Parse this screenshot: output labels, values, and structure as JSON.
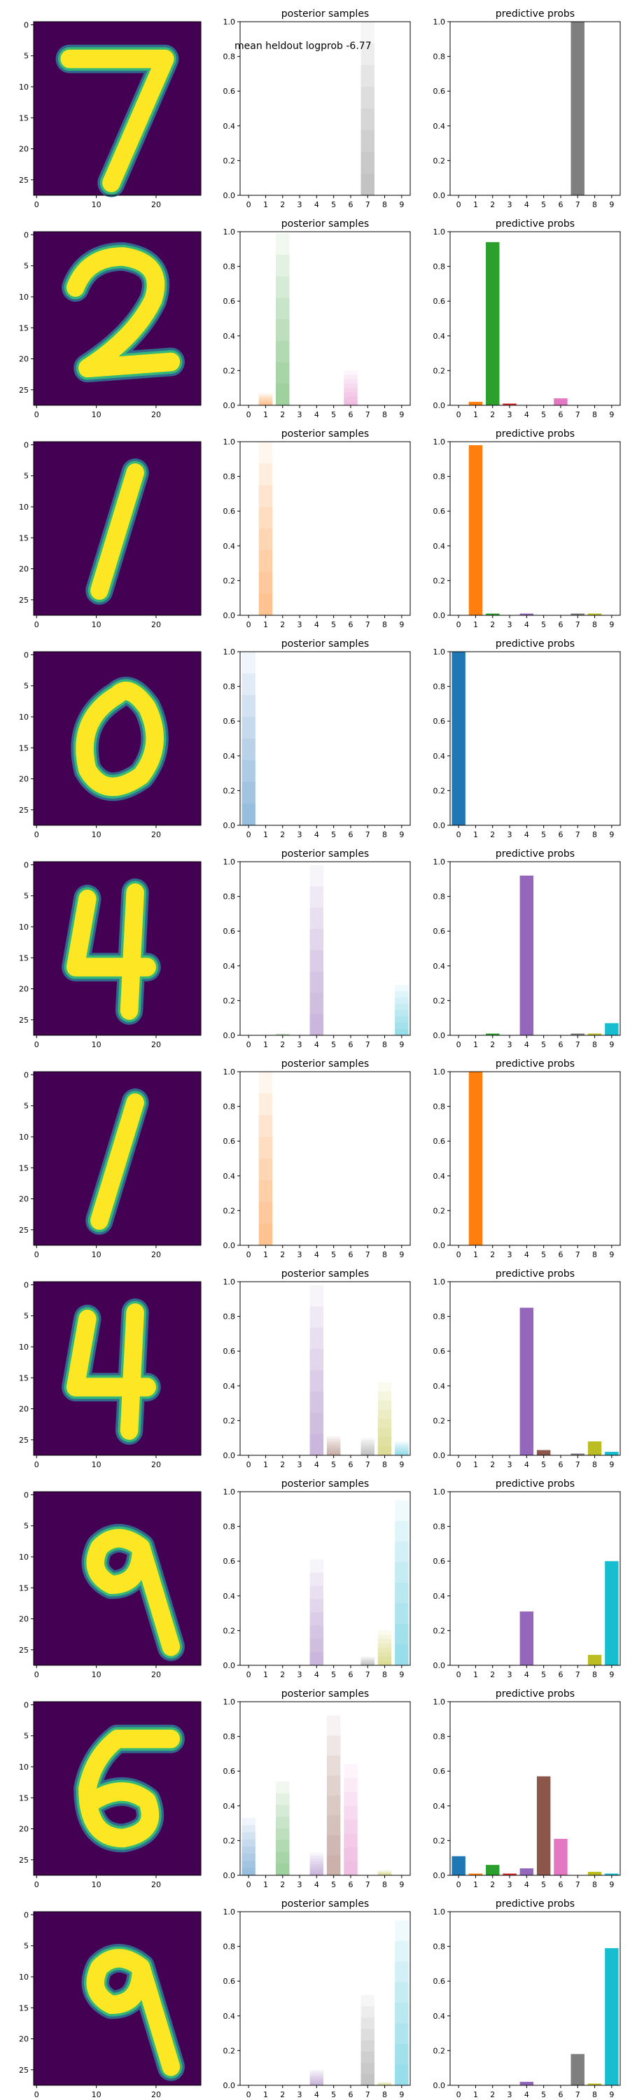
{
  "annotation": "mean heldout logprob -6.77",
  "colors": [
    "#1f77b4",
    "#ff7f0e",
    "#2ca02c",
    "#d62728",
    "#9467bd",
    "#8c564b",
    "#e377c2",
    "#7f7f7f",
    "#bcbd22",
    "#17becf"
  ],
  "chart_data": [
    {
      "type": "figure-row",
      "image": {
        "type": "heatmap",
        "digit_shown": "7",
        "colormap": "viridis",
        "xticks": [
          0,
          10,
          20
        ],
        "yticks": [
          0,
          5,
          10,
          15,
          20,
          25
        ]
      },
      "posterior": {
        "type": "bar",
        "title": "posterior samples",
        "categories": [
          "0",
          "1",
          "2",
          "3",
          "4",
          "5",
          "6",
          "7",
          "8",
          "9"
        ],
        "stack_values": [
          1.0,
          0,
          0,
          0,
          0,
          0,
          0,
          0,
          0,
          0
        ],
        "ylim": [
          0,
          1
        ],
        "yticks": [
          "0.0",
          "0.2",
          "0.4",
          "0.6",
          "0.8",
          "1.0"
        ],
        "categories_dominant": 7,
        "samples": [
          [
            7,
            1.0
          ]
        ]
      },
      "predictive": {
        "type": "bar",
        "title": "predictive probs",
        "categories": [
          "0",
          "1",
          "2",
          "3",
          "4",
          "5",
          "6",
          "7",
          "8",
          "9"
        ],
        "values": [
          0,
          0,
          0,
          0,
          0,
          0,
          0,
          1.0,
          0,
          0
        ],
        "ylim": [
          0,
          1
        ],
        "yticks": [
          "0.0",
          "0.2",
          "0.4",
          "0.6",
          "0.8",
          "1.0"
        ]
      }
    },
    {
      "type": "figure-row",
      "image": {
        "type": "heatmap",
        "digit_shown": "2",
        "colormap": "viridis",
        "xticks": [
          0,
          10,
          20
        ],
        "yticks": [
          0,
          5,
          10,
          15,
          20,
          25
        ]
      },
      "posterior": {
        "type": "bar",
        "title": "posterior samples",
        "categories": [
          "0",
          "1",
          "2",
          "3",
          "4",
          "5",
          "6",
          "7",
          "8",
          "9"
        ],
        "ylim": [
          0,
          1
        ],
        "yticks": [
          "0.0",
          "0.2",
          "0.4",
          "0.6",
          "0.8",
          "1.0"
        ],
        "samples": [
          [
            2,
            0.99
          ],
          [
            1,
            0.07
          ],
          [
            6,
            0.2
          ]
        ]
      },
      "predictive": {
        "type": "bar",
        "title": "predictive probs",
        "categories": [
          "0",
          "1",
          "2",
          "3",
          "4",
          "5",
          "6",
          "7",
          "8",
          "9"
        ],
        "values": [
          0,
          0.02,
          0.94,
          0.01,
          0,
          0,
          0.04,
          0,
          0,
          0
        ],
        "ylim": [
          0,
          1
        ],
        "yticks": [
          "0.0",
          "0.2",
          "0.4",
          "0.6",
          "0.8",
          "1.0"
        ]
      }
    },
    {
      "type": "figure-row",
      "image": {
        "type": "heatmap",
        "digit_shown": "1",
        "colormap": "viridis",
        "xticks": [
          0,
          10,
          20
        ],
        "yticks": [
          0,
          5,
          10,
          15,
          20,
          25
        ]
      },
      "posterior": {
        "type": "bar",
        "title": "posterior samples",
        "categories": [
          "0",
          "1",
          "2",
          "3",
          "4",
          "5",
          "6",
          "7",
          "8",
          "9"
        ],
        "ylim": [
          0,
          1
        ],
        "yticks": [
          "0.0",
          "0.2",
          "0.4",
          "0.6",
          "0.8",
          "1.0"
        ],
        "samples": [
          [
            1,
            1.0
          ]
        ]
      },
      "predictive": {
        "type": "bar",
        "title": "predictive probs",
        "categories": [
          "0",
          "1",
          "2",
          "3",
          "4",
          "5",
          "6",
          "7",
          "8",
          "9"
        ],
        "values": [
          0,
          0.98,
          0.01,
          0,
          0.01,
          0,
          0,
          0.01,
          0.01,
          0
        ],
        "ylim": [
          0,
          1
        ],
        "yticks": [
          "0.0",
          "0.2",
          "0.4",
          "0.6",
          "0.8",
          "1.0"
        ]
      }
    },
    {
      "type": "figure-row",
      "image": {
        "type": "heatmap",
        "digit_shown": "0",
        "colormap": "viridis",
        "xticks": [
          0,
          10,
          20
        ],
        "yticks": [
          0,
          5,
          10,
          15,
          20,
          25
        ]
      },
      "posterior": {
        "type": "bar",
        "title": "posterior samples",
        "categories": [
          "0",
          "1",
          "2",
          "3",
          "4",
          "5",
          "6",
          "7",
          "8",
          "9"
        ],
        "ylim": [
          0,
          1
        ],
        "yticks": [
          "0.0",
          "0.2",
          "0.4",
          "0.6",
          "0.8",
          "1.0"
        ],
        "samples": [
          [
            0,
            1.0
          ]
        ]
      },
      "predictive": {
        "type": "bar",
        "title": "predictive probs",
        "categories": [
          "0",
          "1",
          "2",
          "3",
          "4",
          "5",
          "6",
          "7",
          "8",
          "9"
        ],
        "values": [
          1.0,
          0,
          0,
          0,
          0,
          0,
          0,
          0,
          0,
          0
        ],
        "ylim": [
          0,
          1
        ],
        "yticks": [
          "0.0",
          "0.2",
          "0.4",
          "0.6",
          "0.8",
          "1.0"
        ]
      }
    },
    {
      "type": "figure-row",
      "image": {
        "type": "heatmap",
        "digit_shown": "4",
        "colormap": "viridis",
        "xticks": [
          0,
          10,
          20
        ],
        "yticks": [
          0,
          5,
          10,
          15,
          20,
          25
        ]
      },
      "posterior": {
        "type": "bar",
        "title": "posterior samples",
        "categories": [
          "0",
          "1",
          "2",
          "3",
          "4",
          "5",
          "6",
          "7",
          "8",
          "9"
        ],
        "ylim": [
          0,
          1
        ],
        "yticks": [
          "0.0",
          "0.2",
          "0.4",
          "0.6",
          "0.8",
          "1.0"
        ],
        "samples": [
          [
            4,
            0.98
          ],
          [
            9,
            0.29
          ],
          [
            2,
            0.01
          ]
        ]
      },
      "predictive": {
        "type": "bar",
        "title": "predictive probs",
        "categories": [
          "0",
          "1",
          "2",
          "3",
          "4",
          "5",
          "6",
          "7",
          "8",
          "9"
        ],
        "values": [
          0,
          0,
          0.01,
          0,
          0.92,
          0,
          0,
          0.01,
          0.01,
          0.07
        ],
        "ylim": [
          0,
          1
        ],
        "yticks": [
          "0.0",
          "0.2",
          "0.4",
          "0.6",
          "0.8",
          "1.0"
        ]
      }
    },
    {
      "type": "figure-row",
      "image": {
        "type": "heatmap",
        "digit_shown": "1",
        "colormap": "viridis",
        "xticks": [
          0,
          10,
          20
        ],
        "yticks": [
          0,
          5,
          10,
          15,
          20,
          25
        ]
      },
      "posterior": {
        "type": "bar",
        "title": "posterior samples",
        "categories": [
          "0",
          "1",
          "2",
          "3",
          "4",
          "5",
          "6",
          "7",
          "8",
          "9"
        ],
        "ylim": [
          0,
          1
        ],
        "yticks": [
          "0.0",
          "0.2",
          "0.4",
          "0.6",
          "0.8",
          "1.0"
        ],
        "samples": [
          [
            1,
            1.0
          ]
        ]
      },
      "predictive": {
        "type": "bar",
        "title": "predictive probs",
        "categories": [
          "0",
          "1",
          "2",
          "3",
          "4",
          "5",
          "6",
          "7",
          "8",
          "9"
        ],
        "values": [
          0,
          1.0,
          0,
          0,
          0,
          0,
          0,
          0,
          0,
          0
        ],
        "ylim": [
          0,
          1
        ],
        "yticks": [
          "0.0",
          "0.2",
          "0.4",
          "0.6",
          "0.8",
          "1.0"
        ]
      }
    },
    {
      "type": "figure-row",
      "image": {
        "type": "heatmap",
        "digit_shown": "4",
        "colormap": "viridis",
        "xticks": [
          0,
          10,
          20
        ],
        "yticks": [
          0,
          5,
          10,
          15,
          20,
          25
        ]
      },
      "posterior": {
        "type": "bar",
        "title": "posterior samples",
        "categories": [
          "0",
          "1",
          "2",
          "3",
          "4",
          "5",
          "6",
          "7",
          "8",
          "9"
        ],
        "ylim": [
          0,
          1
        ],
        "yticks": [
          "0.0",
          "0.2",
          "0.4",
          "0.6",
          "0.8",
          "1.0"
        ],
        "samples": [
          [
            4,
            0.98
          ],
          [
            5,
            0.11
          ],
          [
            7,
            0.1
          ],
          [
            8,
            0.42
          ],
          [
            9,
            0.08
          ]
        ]
      },
      "predictive": {
        "type": "bar",
        "title": "predictive probs",
        "categories": [
          "0",
          "1",
          "2",
          "3",
          "4",
          "5",
          "6",
          "7",
          "8",
          "9"
        ],
        "values": [
          0,
          0,
          0,
          0,
          0.85,
          0.03,
          0,
          0.01,
          0.08,
          0.02
        ],
        "ylim": [
          0,
          1
        ],
        "yticks": [
          "0.0",
          "0.2",
          "0.4",
          "0.6",
          "0.8",
          "1.0"
        ]
      }
    },
    {
      "type": "figure-row",
      "image": {
        "type": "heatmap",
        "digit_shown": "9",
        "colormap": "viridis",
        "xticks": [
          0,
          10,
          20
        ],
        "yticks": [
          0,
          5,
          10,
          15,
          20,
          25
        ]
      },
      "posterior": {
        "type": "bar",
        "title": "posterior samples",
        "categories": [
          "0",
          "1",
          "2",
          "3",
          "4",
          "5",
          "6",
          "7",
          "8",
          "9"
        ],
        "ylim": [
          0,
          1
        ],
        "yticks": [
          "0.0",
          "0.2",
          "0.4",
          "0.6",
          "0.8",
          "1.0"
        ],
        "samples": [
          [
            4,
            0.61
          ],
          [
            7,
            0.05
          ],
          [
            8,
            0.2
          ],
          [
            9,
            0.95
          ]
        ]
      },
      "predictive": {
        "type": "bar",
        "title": "predictive probs",
        "categories": [
          "0",
          "1",
          "2",
          "3",
          "4",
          "5",
          "6",
          "7",
          "8",
          "9"
        ],
        "values": [
          0,
          0,
          0,
          0,
          0.31,
          0,
          0,
          0,
          0.06,
          0.6
        ],
        "ylim": [
          0,
          1
        ],
        "yticks": [
          "0.0",
          "0.2",
          "0.4",
          "0.6",
          "0.8",
          "1.0"
        ]
      }
    },
    {
      "type": "figure-row",
      "image": {
        "type": "heatmap",
        "digit_shown": "6",
        "colormap": "viridis",
        "xticks": [
          0,
          10,
          20
        ],
        "yticks": [
          0,
          5,
          10,
          15,
          20,
          25
        ]
      },
      "posterior": {
        "type": "bar",
        "title": "posterior samples",
        "categories": [
          "0",
          "1",
          "2",
          "3",
          "4",
          "5",
          "6",
          "7",
          "8",
          "9"
        ],
        "ylim": [
          0,
          1
        ],
        "yticks": [
          "0.0",
          "0.2",
          "0.4",
          "0.6",
          "0.8",
          "1.0"
        ],
        "samples": [
          [
            0,
            0.33
          ],
          [
            2,
            0.54
          ],
          [
            4,
            0.13
          ],
          [
            5,
            0.92
          ],
          [
            6,
            0.64
          ],
          [
            8,
            0.03
          ]
        ]
      },
      "predictive": {
        "type": "bar",
        "title": "predictive probs",
        "categories": [
          "0",
          "1",
          "2",
          "3",
          "4",
          "5",
          "6",
          "7",
          "8",
          "9"
        ],
        "values": [
          0.11,
          0.01,
          0.06,
          0.01,
          0.04,
          0.57,
          0.21,
          0,
          0.02,
          0.01
        ],
        "ylim": [
          0,
          1
        ],
        "yticks": [
          "0.0",
          "0.2",
          "0.4",
          "0.6",
          "0.8",
          "1.0"
        ]
      }
    },
    {
      "type": "figure-row",
      "image": {
        "type": "heatmap",
        "digit_shown": "9",
        "colormap": "viridis",
        "xticks": [
          0,
          10,
          20
        ],
        "yticks": [
          0,
          5,
          10,
          15,
          20,
          25
        ]
      },
      "posterior": {
        "type": "bar",
        "title": "posterior samples",
        "categories": [
          "0",
          "1",
          "2",
          "3",
          "4",
          "5",
          "6",
          "7",
          "8",
          "9"
        ],
        "ylim": [
          0,
          1
        ],
        "yticks": [
          "0.0",
          "0.2",
          "0.4",
          "0.6",
          "0.8",
          "1.0"
        ],
        "samples": [
          [
            4,
            0.09
          ],
          [
            7,
            0.52
          ],
          [
            9,
            0.95
          ],
          [
            8,
            0.02
          ]
        ]
      },
      "predictive": {
        "type": "bar",
        "title": "predictive probs",
        "categories": [
          "0",
          "1",
          "2",
          "3",
          "4",
          "5",
          "6",
          "7",
          "8",
          "9"
        ],
        "values": [
          0,
          0,
          0,
          0,
          0.02,
          0,
          0,
          0.18,
          0.01,
          0.79
        ],
        "ylim": [
          0,
          1
        ],
        "yticks": [
          "0.0",
          "0.2",
          "0.4",
          "0.6",
          "0.8",
          "1.0"
        ]
      }
    }
  ]
}
